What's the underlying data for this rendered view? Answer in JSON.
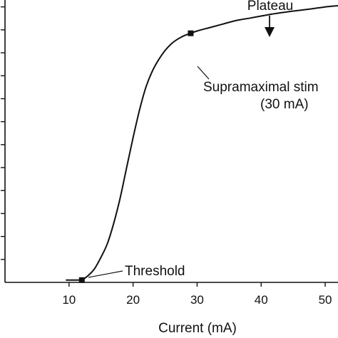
{
  "chart_data": {
    "type": "line",
    "title": "",
    "xlabel": "Current (mA)",
    "ylabel": "",
    "xlim": [
      0,
      52
    ],
    "ylim": [
      0,
      12.3
    ],
    "x_ticks": [
      10,
      20,
      30,
      40,
      50
    ],
    "x_tick_labels": [
      "10",
      "20",
      "30",
      "40",
      "50"
    ],
    "y_ticks": [
      1,
      2,
      3,
      4,
      5,
      6,
      7,
      8,
      9,
      10,
      11,
      12
    ],
    "grid": false,
    "series": [
      {
        "x": [
          9.5,
          10.5,
          11.5,
          12,
          13,
          14,
          15,
          16,
          17,
          18,
          19,
          20,
          21,
          22,
          23,
          24,
          25,
          26,
          27,
          28,
          29,
          30,
          32,
          34,
          36,
          38,
          40,
          42,
          44,
          46,
          48,
          50,
          52
        ],
        "y": [
          0.1,
          0.1,
          0.1,
          0.1,
          0.3,
          0.6,
          1.1,
          1.7,
          2.6,
          3.7,
          5.0,
          6.3,
          7.5,
          8.5,
          9.2,
          9.7,
          10.1,
          10.4,
          10.6,
          10.75,
          10.85,
          10.95,
          11.1,
          11.25,
          11.4,
          11.5,
          11.6,
          11.7,
          11.78,
          11.85,
          11.92,
          12.0,
          12.05
        ]
      }
    ],
    "markers": [
      {
        "x": 12,
        "y": 0.1
      },
      {
        "x": 29,
        "y": 10.85
      }
    ],
    "annotations": {
      "threshold": "Threshold",
      "supramaximal_line1": "Supramaximal stim",
      "supramaximal_line2": "(30 mA)",
      "plateau": "Plateau"
    }
  }
}
